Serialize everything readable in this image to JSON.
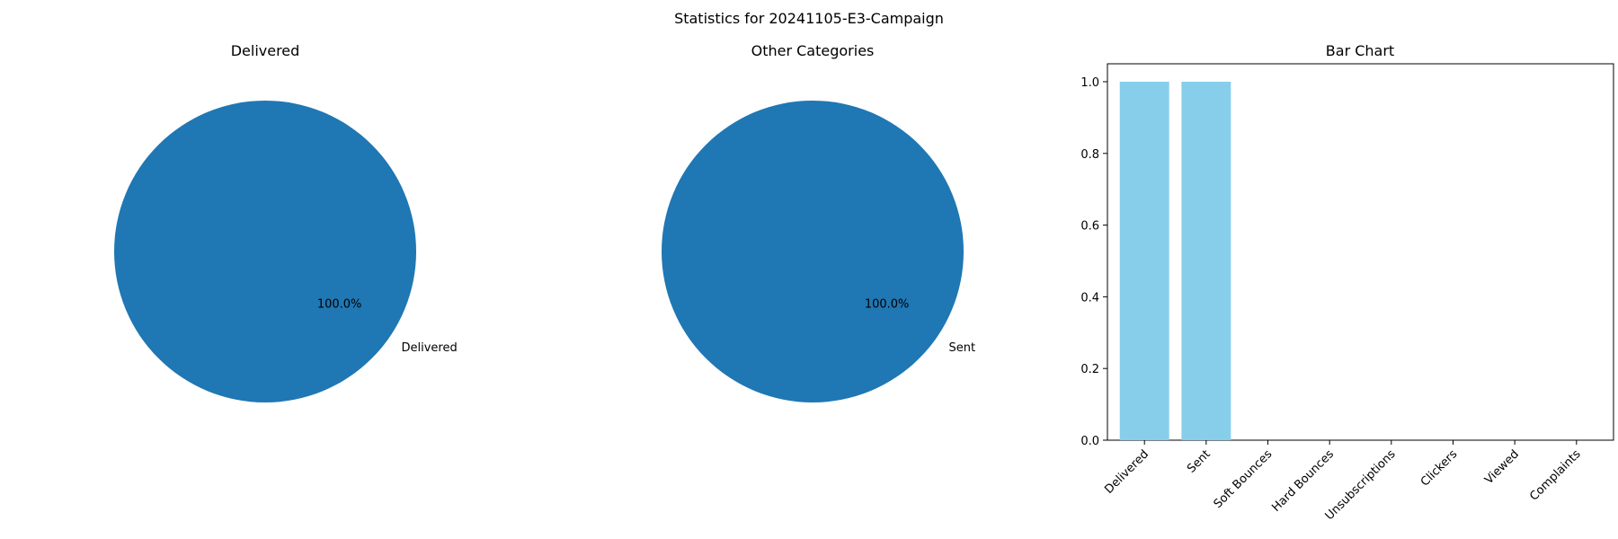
{
  "suptitle": "Statistics for 20241105-E3-Campaign",
  "colors": {
    "pie": "#1f77b4",
    "bar": "#87ceeb",
    "axis": "#000000"
  },
  "chart_data": [
    {
      "type": "pie",
      "title": "Delivered",
      "slices": [
        {
          "label": "Delivered",
          "value": 1,
          "pct_label": "100.0%"
        }
      ]
    },
    {
      "type": "pie",
      "title": "Other Categories",
      "slices": [
        {
          "label": "Sent",
          "value": 1,
          "pct_label": "100.0%"
        }
      ]
    },
    {
      "type": "bar",
      "title": "Bar Chart",
      "categories": [
        "Delivered",
        "Sent",
        "Soft Bounces",
        "Hard Bounces",
        "Unsubscriptions",
        "Clickers",
        "Viewed",
        "Complaints"
      ],
      "values": [
        1,
        1,
        0,
        0,
        0,
        0,
        0,
        0
      ],
      "ylim": [
        0,
        1.05
      ],
      "yticks": [
        0.0,
        0.2,
        0.4,
        0.6,
        0.8,
        1.0
      ],
      "ytick_labels": [
        "0.0",
        "0.2",
        "0.4",
        "0.6",
        "0.8",
        "1.0"
      ],
      "xlabel": "",
      "ylabel": "",
      "grid": false
    }
  ]
}
